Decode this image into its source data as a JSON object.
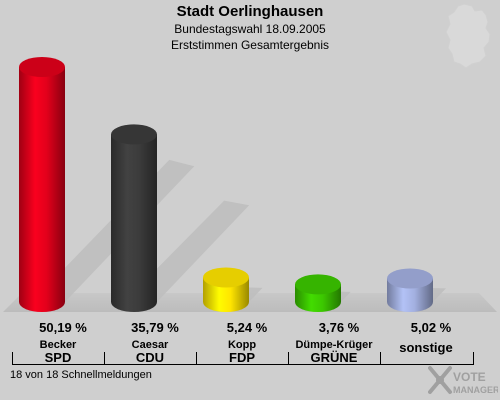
{
  "header": {
    "title": "Stadt Oerlinghausen",
    "subtitle1": "Bundestagswahl 18.09.2005",
    "subtitle2": "Erststimmen Gesamtergebnis"
  },
  "chart_data": {
    "type": "bar",
    "title": "Stadt Oerlinghausen",
    "categories": [
      "SPD",
      "CDU",
      "FDP",
      "GRÜNE",
      "sonstige"
    ],
    "candidates": [
      "Becker",
      "Caesar",
      "Kopp",
      "Dümpe-Krüger",
      ""
    ],
    "values": [
      50.19,
      35.79,
      5.24,
      3.76,
      5.02
    ],
    "value_labels": [
      "50,19 %",
      "35,79 %",
      "5,24 %",
      "3,76 %",
      "5,02 %"
    ],
    "colors": [
      "#e3001b",
      "#3c3c3c",
      "#ffe500",
      "#3cc800",
      "#a3b0e0"
    ],
    "ylim": [
      0,
      55
    ],
    "grid": false,
    "legend": "none"
  },
  "footer": {
    "status": "18 von 18 Schnellmeldungen"
  },
  "logo": {
    "text1": "VOTE",
    "text2": "MANAGER"
  },
  "icons": {
    "map": "germany-map-icon",
    "logo": "vote-manager-logo-icon"
  }
}
